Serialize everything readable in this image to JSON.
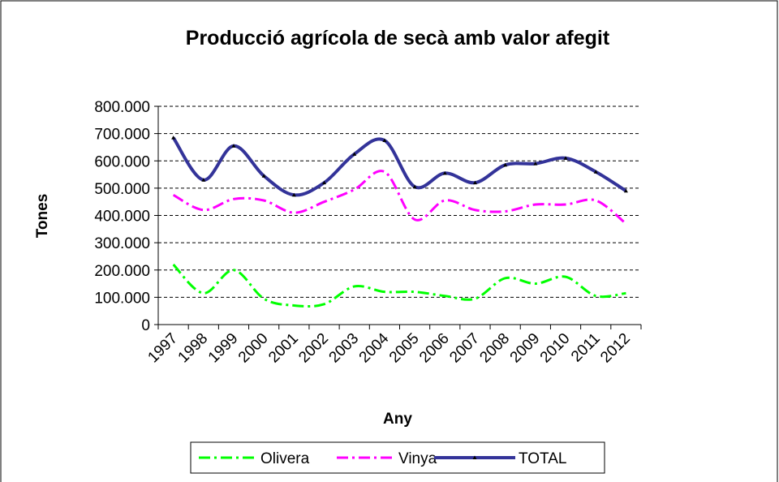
{
  "chart_data": {
    "type": "line",
    "title": "Producció agrícola de secà amb valor afegit",
    "x_label": "Any",
    "y_label": "Tones",
    "categories": [
      "1997",
      "1998",
      "1999",
      "2000",
      "2001",
      "2002",
      "2003",
      "2004",
      "2005",
      "2006",
      "2007",
      "2008",
      "2009",
      "2010",
      "2011",
      "2012"
    ],
    "series": [
      {
        "name": "Olivera",
        "color": "#00ff00",
        "dash": "dash-dot",
        "values": [
          220000,
          115000,
          200000,
          95000,
          70000,
          75000,
          140000,
          120000,
          120000,
          105000,
          95000,
          170000,
          150000,
          175000,
          105000,
          115000
        ]
      },
      {
        "name": "Vinya",
        "color": "#ff00ff",
        "dash": "dash-dot",
        "values": [
          475000,
          420000,
          460000,
          455000,
          410000,
          450000,
          495000,
          560000,
          385000,
          455000,
          420000,
          415000,
          440000,
          440000,
          455000,
          370000
        ]
      },
      {
        "name": "TOTAL",
        "color": "#333399",
        "dash": "solid",
        "values": [
          685000,
          530000,
          655000,
          545000,
          475000,
          520000,
          625000,
          675000,
          505000,
          555000,
          520000,
          585000,
          590000,
          610000,
          560000,
          490000
        ]
      }
    ],
    "ylim": [
      0,
      800000
    ],
    "yticks": [
      0,
      {
        "value": 100000,
        "label": "100.000"
      },
      {
        "value": 200000,
        "label": "200.000"
      },
      {
        "value": 300000,
        "label": "300.000"
      },
      {
        "value": 400000,
        "label": "400.000"
      },
      {
        "value": 500000,
        "label": "500.000"
      },
      {
        "value": 600000,
        "label": "600.000"
      },
      {
        "value": 700000,
        "label": "700.000"
      },
      {
        "value": 800000,
        "label": "800.000"
      }
    ],
    "grid": true,
    "legend": "bottom"
  }
}
